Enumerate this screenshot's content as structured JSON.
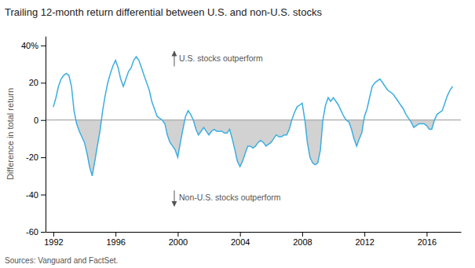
{
  "chart_data": {
    "type": "line",
    "title": "Trailing 12-month return differential between U.S. and non-U.S. stocks",
    "y_label": "Difference in total return",
    "source": "Sources: Vanguard and FactSet.",
    "annotations": [
      "U.S. stocks outperform",
      "Non-U.S. stocks outperform"
    ],
    "color": "#3baee0",
    "grid": false,
    "xlim": [
      1991.5,
      2018.2
    ],
    "xticks": [
      1992,
      1996,
      2000,
      2004,
      2008,
      2012,
      2016
    ],
    "ylim": [
      -60,
      45
    ],
    "yticks": [
      -60,
      -40,
      -20,
      0,
      20,
      {
        "value": 40,
        "label": "40%"
      }
    ],
    "x": [
      1992.0,
      1992.17,
      1992.33,
      1992.5,
      1992.67,
      1992.83,
      1993.0,
      1993.17,
      1993.33,
      1993.5,
      1993.67,
      1993.83,
      1994.0,
      1994.17,
      1994.33,
      1994.5,
      1994.67,
      1994.83,
      1995.0,
      1995.17,
      1995.33,
      1995.5,
      1995.67,
      1995.83,
      1996.0,
      1996.17,
      1996.33,
      1996.5,
      1996.67,
      1996.83,
      1997.0,
      1997.17,
      1997.33,
      1997.5,
      1997.67,
      1997.83,
      1998.0,
      1998.17,
      1998.33,
      1998.5,
      1998.67,
      1998.83,
      1999.0,
      1999.17,
      1999.33,
      1999.5,
      1999.67,
      1999.83,
      2000.0,
      2000.17,
      2000.33,
      2000.5,
      2000.67,
      2000.83,
      2001.0,
      2001.17,
      2001.33,
      2001.5,
      2001.67,
      2001.83,
      2002.0,
      2002.17,
      2002.33,
      2002.5,
      2002.67,
      2002.83,
      2003.0,
      2003.17,
      2003.33,
      2003.5,
      2003.67,
      2003.83,
      2004.0,
      2004.17,
      2004.33,
      2004.5,
      2004.67,
      2004.83,
      2005.0,
      2005.17,
      2005.33,
      2005.5,
      2005.67,
      2005.83,
      2006.0,
      2006.17,
      2006.33,
      2006.5,
      2006.67,
      2006.83,
      2007.0,
      2007.17,
      2007.33,
      2007.5,
      2007.67,
      2007.83,
      2008.0,
      2008.17,
      2008.33,
      2008.5,
      2008.67,
      2008.83,
      2009.0,
      2009.17,
      2009.33,
      2009.5,
      2009.67,
      2009.83,
      2010.0,
      2010.17,
      2010.33,
      2010.5,
      2010.67,
      2010.83,
      2011.0,
      2011.17,
      2011.33,
      2011.5,
      2011.67,
      2011.83,
      2012.0,
      2012.17,
      2012.33,
      2012.5,
      2012.67,
      2012.83,
      2013.0,
      2013.17,
      2013.33,
      2013.5,
      2013.67,
      2013.83,
      2014.0,
      2014.17,
      2014.33,
      2014.5,
      2014.67,
      2014.83,
      2015.0,
      2015.17,
      2015.33,
      2015.5,
      2015.67,
      2015.83,
      2016.0,
      2016.17,
      2016.33,
      2016.5,
      2016.67,
      2016.83,
      2017.0,
      2017.17,
      2017.33,
      2017.5,
      2017.67
    ],
    "values": [
      7,
      12,
      18,
      22,
      24,
      25,
      24,
      18,
      5,
      -2,
      -6,
      -9,
      -12,
      -18,
      -25,
      -30,
      -22,
      -14,
      -6,
      5,
      13,
      20,
      25,
      29,
      32,
      28,
      22,
      18,
      22,
      26,
      28,
      32,
      34,
      32,
      28,
      24,
      20,
      16,
      10,
      6,
      2,
      1,
      0,
      -2,
      -8,
      -12,
      -14,
      -16,
      -20,
      -12,
      -5,
      2,
      5,
      3,
      0,
      -5,
      -8,
      -6,
      -4,
      -6,
      -8,
      -6,
      -5,
      -6,
      -6,
      -6,
      -7,
      -7,
      -5,
      -10,
      -16,
      -22,
      -25,
      -22,
      -18,
      -14,
      -14,
      -15,
      -14,
      -12,
      -11,
      -12,
      -14,
      -13,
      -12,
      -10,
      -8,
      -9,
      -9,
      -8,
      -8,
      -5,
      0,
      4,
      7,
      8,
      9,
      0,
      -12,
      -20,
      -23,
      -24,
      -23,
      -16,
      0,
      8,
      12,
      10,
      12,
      10,
      8,
      5,
      2,
      0,
      -1,
      -5,
      -10,
      -14,
      -10,
      -7,
      2,
      6,
      12,
      18,
      20,
      21,
      22,
      20,
      18,
      16,
      15,
      14,
      12,
      10,
      8,
      6,
      3,
      1,
      -1,
      -4,
      -3,
      -2,
      -2,
      -2,
      -3,
      -5,
      -5,
      0,
      3,
      4,
      5,
      9,
      13,
      16,
      18
    ]
  }
}
